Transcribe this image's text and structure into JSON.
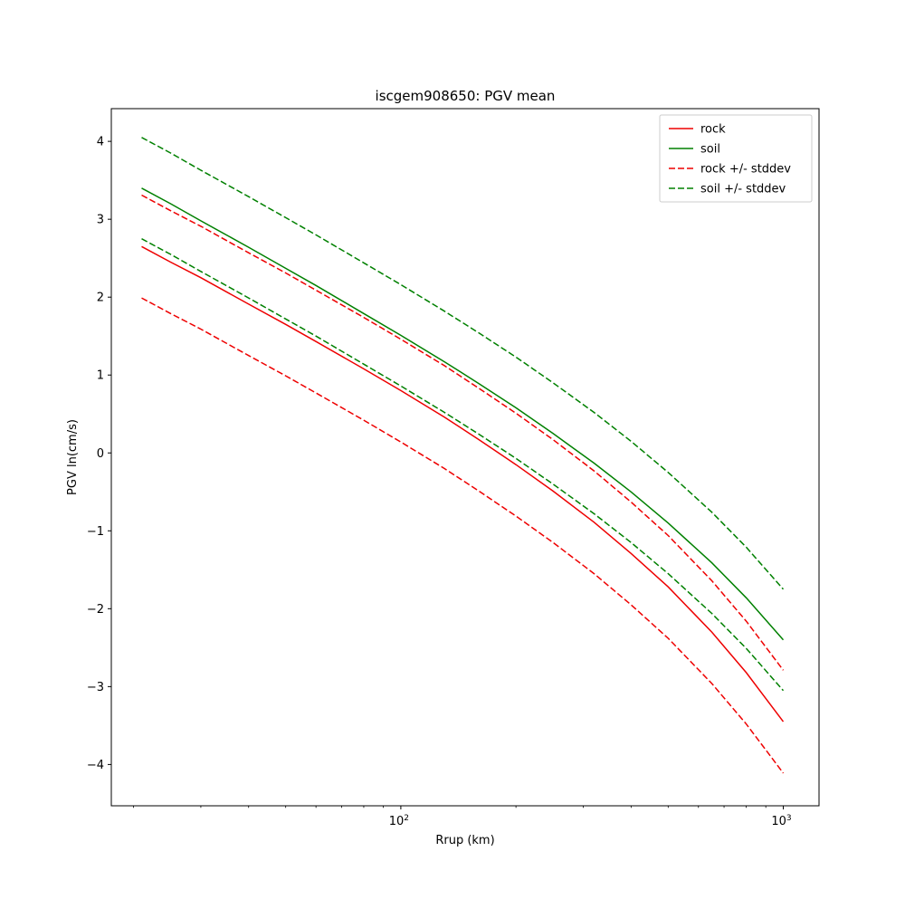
{
  "figure": {
    "background": "#ffffff"
  },
  "chart_data": {
    "type": "line",
    "title": "iscgem908650: PGV mean",
    "xlabel": "Rrup (km)",
    "ylabel": "PGV ln(cm/s)",
    "x_scale": "log",
    "y_scale": "linear",
    "grid": false,
    "legend_position": "upper right",
    "xlim": [
      17.5,
      1240
    ],
    "ylim": [
      -4.53,
      4.42
    ],
    "y_ticks": [
      -4,
      -3,
      -2,
      -1,
      0,
      1,
      2,
      3,
      4
    ],
    "x_major_ticks": [
      {
        "value": 100,
        "base": "10",
        "exp": "2"
      },
      {
        "value": 1000,
        "base": "10",
        "exp": "3"
      }
    ],
    "x": [
      21,
      25,
      30,
      40,
      50,
      60,
      80,
      100,
      130,
      160,
      200,
      250,
      320,
      400,
      500,
      650,
      800,
      1000
    ],
    "series": [
      {
        "name": "rock",
        "label": "rock",
        "color": "#ee0000",
        "dash": "solid",
        "values": [
          2.65,
          2.45,
          2.25,
          1.91,
          1.65,
          1.43,
          1.08,
          0.8,
          0.46,
          0.17,
          -0.15,
          -0.49,
          -0.89,
          -1.29,
          -1.72,
          -2.3,
          -2.82,
          -3.45
        ]
      },
      {
        "name": "soil",
        "label": "soil",
        "color": "#008000",
        "dash": "solid",
        "values": [
          3.4,
          3.2,
          2.98,
          2.64,
          2.37,
          2.15,
          1.79,
          1.51,
          1.17,
          0.89,
          0.58,
          0.25,
          -0.13,
          -0.5,
          -0.9,
          -1.41,
          -1.86,
          -2.4
        ]
      },
      {
        "name": "rock-plus-stddev",
        "label": "rock +/- stddev",
        "color": "#ee0000",
        "dash": "dashed",
        "in_legend": true,
        "values": [
          3.31,
          3.11,
          2.91,
          2.57,
          2.31,
          2.09,
          1.74,
          1.46,
          1.12,
          0.83,
          0.51,
          0.17,
          -0.23,
          -0.63,
          -1.06,
          -1.64,
          -2.16,
          -2.79
        ]
      },
      {
        "name": "rock-minus-stddev",
        "label": "",
        "color": "#ee0000",
        "dash": "dashed",
        "in_legend": false,
        "values": [
          1.99,
          1.79,
          1.59,
          1.25,
          0.99,
          0.77,
          0.42,
          0.14,
          -0.2,
          -0.49,
          -0.81,
          -1.15,
          -1.55,
          -1.95,
          -2.38,
          -2.96,
          -3.48,
          -4.11
        ]
      },
      {
        "name": "soil-plus-stddev",
        "label": "soil +/- stddev",
        "color": "#008000",
        "dash": "dashed",
        "in_legend": true,
        "values": [
          4.05,
          3.85,
          3.63,
          3.29,
          3.02,
          2.8,
          2.44,
          2.16,
          1.82,
          1.54,
          1.23,
          0.9,
          0.52,
          0.15,
          -0.25,
          -0.76,
          -1.21,
          -1.75
        ]
      },
      {
        "name": "soil-minus-stddev",
        "label": "",
        "color": "#008000",
        "dash": "dashed",
        "in_legend": false,
        "values": [
          2.75,
          2.55,
          2.33,
          1.99,
          1.72,
          1.5,
          1.14,
          0.86,
          0.52,
          0.24,
          -0.07,
          -0.4,
          -0.78,
          -1.15,
          -1.55,
          -2.06,
          -2.51,
          -3.05
        ]
      }
    ],
    "legend_entries": [
      "rock",
      "soil",
      "rock +/- stddev",
      "soil +/- stddev"
    ],
    "rock_stddev": 0.66,
    "soil_stddev": 0.65
  }
}
